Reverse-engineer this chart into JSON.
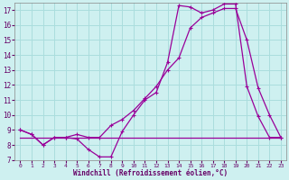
{
  "xlabel": "Windchill (Refroidissement éolien,°C)",
  "bg_color": "#cef0f0",
  "grid_color": "#aadddd",
  "line_color": "#990099",
  "xlim": [
    -0.5,
    23.5
  ],
  "ylim": [
    7,
    17.5
  ],
  "yticks": [
    7,
    8,
    9,
    10,
    11,
    12,
    13,
    14,
    15,
    16,
    17
  ],
  "xticks": [
    0,
    1,
    2,
    3,
    4,
    5,
    6,
    7,
    8,
    9,
    10,
    11,
    12,
    13,
    14,
    15,
    16,
    17,
    18,
    19,
    20,
    21,
    22,
    23
  ],
  "line1_x": [
    0,
    1,
    2,
    3,
    4,
    5,
    6,
    7,
    8,
    9,
    10,
    11,
    12,
    13,
    14,
    15,
    16,
    17,
    18,
    19,
    20,
    21,
    22,
    23
  ],
  "line1_y": [
    9.0,
    8.7,
    8.0,
    8.5,
    8.5,
    8.4,
    7.7,
    7.2,
    7.2,
    8.9,
    10.0,
    11.0,
    11.5,
    13.5,
    17.3,
    17.2,
    16.8,
    17.0,
    17.4,
    17.4,
    11.9,
    9.9,
    8.5,
    8.5
  ],
  "line2_x": [
    0,
    1,
    2,
    3,
    4,
    5,
    6,
    7,
    8,
    9,
    10,
    11,
    12,
    13,
    14,
    15,
    16,
    17,
    18,
    19,
    20,
    21,
    22,
    23
  ],
  "line2_y": [
    9.0,
    8.7,
    8.0,
    8.5,
    8.5,
    8.7,
    8.5,
    8.5,
    9.3,
    9.7,
    10.3,
    11.1,
    11.9,
    13.0,
    13.8,
    15.8,
    16.5,
    16.8,
    17.1,
    17.1,
    15.0,
    11.8,
    10.0,
    8.5
  ],
  "line3_x": [
    0,
    14,
    23
  ],
  "line3_y": [
    8.5,
    8.5,
    8.5
  ]
}
